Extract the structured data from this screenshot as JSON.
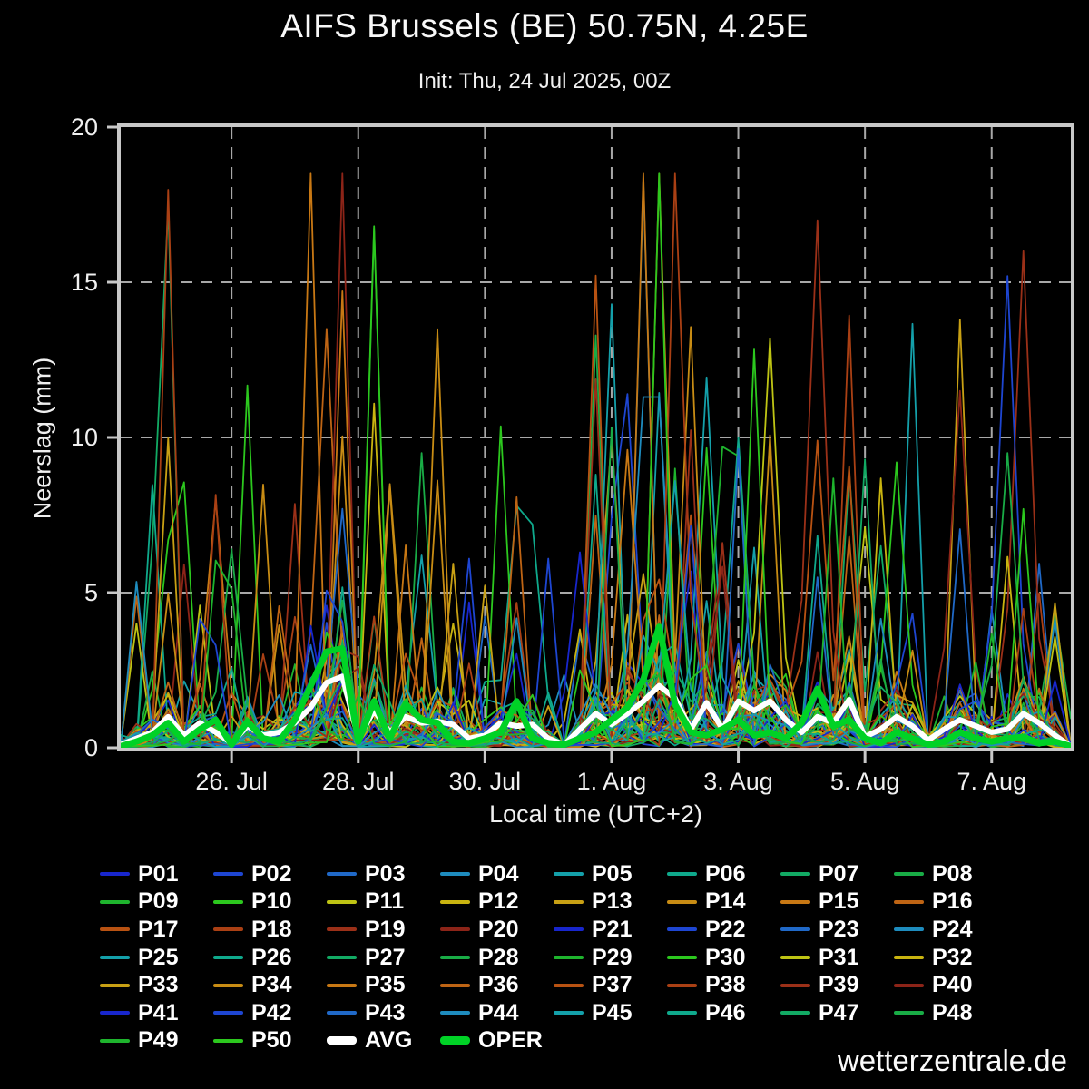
{
  "title": "AIFS Brussels (BE) 50.75N, 4.25E",
  "subtitle": "Init: Thu, 24 Jul 2025, 00Z",
  "watermark": "wetterzentrale.de",
  "colors": {
    "background": "#000000",
    "frame": "#c8c8c8",
    "grid": "#a8a8a8",
    "text": "#f0f0f0",
    "avg": "#ffffff",
    "oper": "#00d226",
    "palette20": [
      "#1826cd",
      "#1e46d2",
      "#2069c8",
      "#1e8cbe",
      "#14a0aa",
      "#0fa98c",
      "#12aa64",
      "#19ac46",
      "#1eb42d",
      "#2cc81e",
      "#bec414",
      "#c9b410",
      "#c8a014",
      "#c88c14",
      "#c87814",
      "#be6414",
      "#b85212",
      "#aa4014",
      "#9b3018",
      "#8c2418"
    ]
  },
  "chart_data": {
    "type": "line",
    "title": "AIFS Brussels (BE) 50.75N, 4.25E",
    "subtitle": "Init: Thu, 24 Jul 2025, 00Z",
    "xlabel": "Local time (UTC+2)",
    "ylabel": "Neerslag (mm)",
    "ylim": [
      0,
      20
    ],
    "yticks": [
      0,
      5,
      10,
      15,
      20
    ],
    "grid": "dashed",
    "legend_position": "below",
    "x_hours_range": [
      0,
      360
    ],
    "x_step_hours": 6,
    "xticks": [
      {
        "hour": 42,
        "label": "26. Jul"
      },
      {
        "hour": 90,
        "label": "28. Jul"
      },
      {
        "hour": 138,
        "label": "30. Jul"
      },
      {
        "hour": 186,
        "label": "1. Aug"
      },
      {
        "hour": 234,
        "label": "3. Aug"
      },
      {
        "hour": 282,
        "label": "5. Aug"
      },
      {
        "hour": 330,
        "label": "7. Aug"
      }
    ],
    "series_labels": [
      "P01",
      "P02",
      "P03",
      "P04",
      "P05",
      "P06",
      "P07",
      "P08",
      "P09",
      "P10",
      "P11",
      "P12",
      "P13",
      "P14",
      "P15",
      "P16",
      "P17",
      "P18",
      "P19",
      "P20",
      "P21",
      "P22",
      "P23",
      "P24",
      "P25",
      "P26",
      "P27",
      "P28",
      "P29",
      "P30",
      "P31",
      "P32",
      "P33",
      "P34",
      "P35",
      "P36",
      "P37",
      "P38",
      "P39",
      "P40",
      "P41",
      "P42",
      "P43",
      "P44",
      "P45",
      "P46",
      "P47",
      "P48",
      "P49",
      "P50",
      "AVG",
      "OPER"
    ],
    "avg": {
      "name": "AVG",
      "values": [
        0.1,
        0.3,
        0.5,
        1.0,
        0.4,
        0.8,
        0.5,
        0.15,
        0.7,
        0.4,
        0.5,
        0.8,
        1.3,
        2.1,
        2.3,
        0.3,
        1.2,
        0.5,
        1.0,
        0.8,
        0.85,
        0.75,
        0.3,
        0.4,
        0.8,
        0.7,
        0.75,
        0.3,
        0.1,
        0.6,
        1.1,
        0.75,
        1.1,
        1.5,
        2.0,
        1.6,
        0.6,
        1.45,
        0.6,
        1.5,
        1.2,
        1.5,
        0.9,
        0.5,
        1.0,
        0.8,
        1.55,
        0.35,
        0.6,
        1.0,
        0.7,
        0.25,
        0.6,
        0.9,
        0.7,
        0.5,
        0.6,
        1.1,
        0.8,
        0.4,
        0.05
      ]
    },
    "oper": {
      "name": "OPER",
      "values": [
        0.05,
        0.2,
        0.4,
        0.8,
        0.2,
        0.6,
        0.9,
        0.1,
        0.85,
        0.3,
        0.2,
        0.9,
        2.0,
        3.1,
        3.2,
        0.2,
        1.5,
        0.3,
        1.4,
        0.9,
        0.8,
        0.2,
        0.15,
        0.3,
        0.5,
        1.5,
        0.3,
        0.15,
        0.1,
        0.3,
        0.5,
        0.9,
        1.3,
        2.2,
        3.9,
        1.4,
        0.5,
        0.4,
        0.6,
        0.9,
        0.4,
        0.5,
        0.3,
        0.8,
        1.9,
        0.7,
        0.9,
        0.3,
        0.15,
        0.5,
        0.3,
        0.1,
        0.2,
        0.5,
        0.3,
        0.2,
        0.3,
        0.35,
        0.15,
        0.2,
        0.05
      ]
    },
    "ensemble": {
      "count": 50,
      "label_prefix": "P",
      "synthesis_seed": 1234
    },
    "ensemble_peaks": [
      {
        "member": "P10",
        "hour": 18,
        "value": 6.7
      },
      {
        "member": "P15",
        "hour": 33,
        "value": 8.0
      },
      {
        "member": "P28",
        "hour": 40,
        "value": 6.4
      },
      {
        "member": "P16",
        "hour": 80,
        "value": 13.5
      },
      {
        "member": "P23",
        "hour": 84,
        "value": 7.7
      },
      {
        "member": "P14",
        "hour": 104,
        "value": 8.5
      },
      {
        "member": "P05",
        "hour": 112,
        "value": 6.2
      },
      {
        "member": "P12",
        "hour": 128,
        "value": 4.0
      },
      {
        "member": "P06",
        "hour": 148,
        "value": 7.8
      },
      {
        "member": "P06",
        "hour": 156,
        "value": 7.2
      },
      {
        "member": "P21",
        "hour": 172,
        "value": 6.3
      },
      {
        "member": "P13",
        "hour": 183,
        "value": 10.0
      },
      {
        "member": "P35",
        "hour": 190,
        "value": 9.6
      },
      {
        "member": "P02",
        "hour": 192,
        "value": 11.4
      },
      {
        "member": "P24",
        "hour": 198,
        "value": 11.3
      },
      {
        "member": "P24",
        "hour": 204,
        "value": 11.3
      },
      {
        "member": "P45",
        "hour": 208,
        "value": 8.6
      },
      {
        "member": "P17",
        "hour": 214,
        "value": 7.5
      },
      {
        "member": "P25",
        "hour": 220,
        "value": 10.3
      },
      {
        "member": "P29",
        "hour": 228,
        "value": 9.7
      },
      {
        "member": "P26",
        "hour": 232,
        "value": 10.0
      },
      {
        "member": "P29",
        "hour": 236,
        "value": 9.4
      },
      {
        "member": "P31",
        "hour": 246,
        "value": 13.2
      },
      {
        "member": "P37",
        "hour": 262,
        "value": 9.9
      },
      {
        "member": "P39",
        "hour": 266,
        "value": 17.0
      },
      {
        "member": "P11",
        "hour": 280,
        "value": 7.1
      },
      {
        "member": "P07",
        "hour": 290,
        "value": 6.5
      },
      {
        "member": "P30",
        "hour": 296,
        "value": 9.2
      },
      {
        "member": "P20",
        "hour": 320,
        "value": 11.5
      },
      {
        "member": "P48",
        "hour": 334,
        "value": 9.5
      },
      {
        "member": "P22",
        "hour": 338,
        "value": 15.2
      },
      {
        "member": "P19",
        "hour": 344,
        "value": 16.0
      },
      {
        "member": "P08",
        "hour": 352,
        "value": 4.3
      }
    ]
  },
  "legend": {
    "avg_label": "AVG",
    "oper_label": "OPER"
  }
}
